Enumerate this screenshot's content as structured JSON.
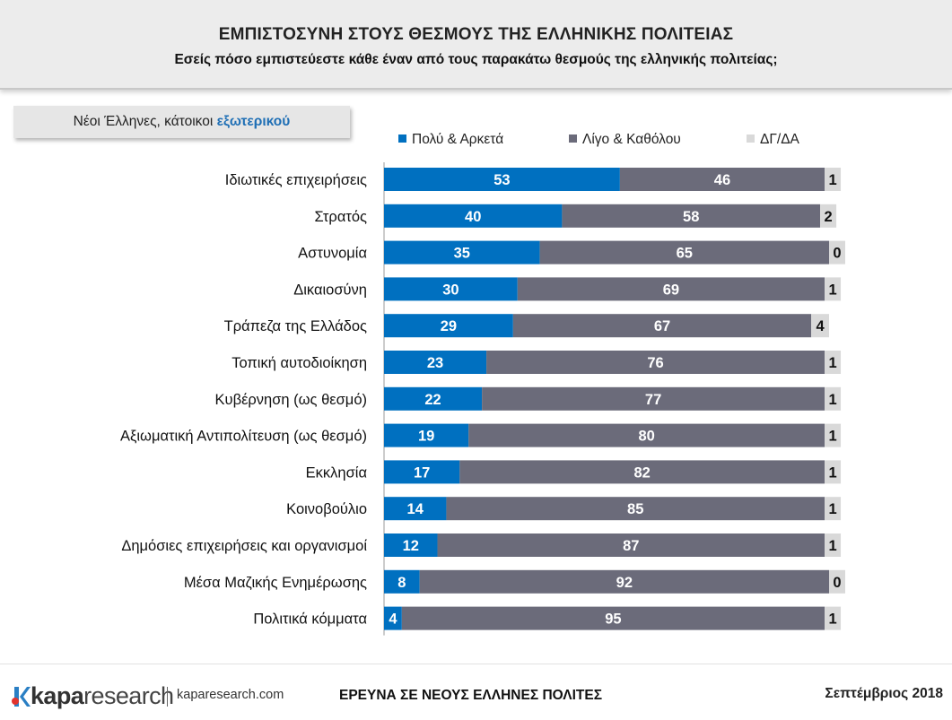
{
  "header": {
    "title": "ΕΜΠΙΣΤΟΣΥΝΗ ΣΤΟΥΣ ΘΕΣΜΟΥΣ ΤΗΣ ΕΛΛΗΝΙΚΗΣ ΠΟΛΙΤΕΙΑΣ",
    "subtitle": "Εσείς πόσο εμπιστεύεστε κάθε έναν από τους παρακάτω θεσμούς της ελληνικής πολιτείας;"
  },
  "segment": {
    "prefix": "Νέοι Έλληνες, κάτοικοι ",
    "highlight": "εξωτερικού"
  },
  "colors": {
    "blue": "#0070c0",
    "gray": "#6b6b7a",
    "light": "#d9d9d9",
    "highlight": "#1f6fb5"
  },
  "chart_data": {
    "type": "bar",
    "stacked": true,
    "orientation": "horizontal",
    "xlim": [
      0,
      100
    ],
    "categories": [
      "Ιδιωτικές επιχειρήσεις",
      "Στρατός",
      "Αστυνομία",
      "Δικαιοσύνη",
      "Τράπεζα της Ελλάδος",
      "Τοπική αυτοδιοίκηση",
      "Κυβέρνηση (ως θεσμό)",
      "Αξιωματική Αντιπολίτευση (ως θεσμό)",
      "Εκκλησία",
      "Κοινοβούλιο",
      "Δημόσιες επιχειρήσεις και οργανισμοί",
      "Μέσα Μαζικής Ενημέρωσης",
      "Πολιτικά κόμματα"
    ],
    "series": [
      {
        "name": "Πολύ & Αρκετά",
        "color": "#0070c0",
        "values": [
          53,
          40,
          35,
          30,
          29,
          23,
          22,
          19,
          17,
          14,
          12,
          8,
          4
        ]
      },
      {
        "name": "Λίγο & Καθόλου",
        "color": "#6b6b7a",
        "values": [
          46,
          58,
          65,
          69,
          67,
          76,
          77,
          80,
          82,
          85,
          87,
          92,
          95
        ]
      },
      {
        "name": "ΔΓ/ΔΑ",
        "color": "#d9d9d9",
        "values": [
          1,
          2,
          0,
          1,
          4,
          1,
          1,
          1,
          1,
          1,
          1,
          0,
          1
        ]
      }
    ],
    "legend": "top"
  },
  "footer": {
    "brand": "kapa",
    "brand_suffix": "research",
    "site": "kaparesearch.com",
    "survey": "ΕΡΕΥΝΑ ΣΕ ΝΕΟΥΣ ΕΛΛΗΝΕΣ ΠΟΛΙΤΕΣ",
    "date": "Σεπτέμβριος 2018"
  }
}
